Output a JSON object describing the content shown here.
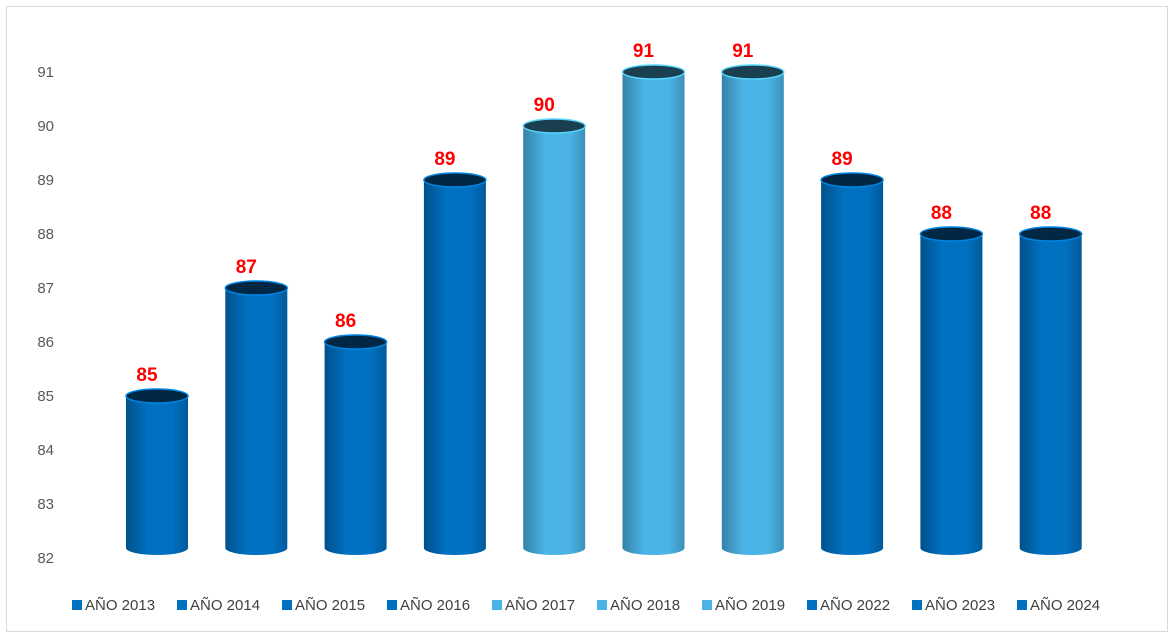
{
  "chart_data": {
    "type": "bar",
    "categories": [
      "AÑO 2013",
      "AÑO 2014",
      "AÑO 2015",
      "AÑO 2016",
      "AÑO 2017",
      "AÑO 2018",
      "AÑO 2019",
      "AÑO 2022",
      "AÑO 2023",
      "AÑO 2024"
    ],
    "values": [
      85,
      87,
      86,
      89,
      90,
      91,
      91,
      89,
      88,
      88
    ],
    "value_labels": [
      "85",
      "87",
      "86",
      "89",
      "90",
      "91",
      "91",
      "89",
      "88",
      "88"
    ],
    "colors": [
      "#0070c0",
      "#0070c0",
      "#0070c0",
      "#0070c0",
      "#4ab4e6",
      "#4ab4e6",
      "#4ab4e6",
      "#0070c0",
      "#0070c0",
      "#0070c0"
    ],
    "bar_shape": "cylinder",
    "y_ticks": [
      "82",
      "83",
      "84",
      "85",
      "86",
      "87",
      "88",
      "89",
      "90",
      "91"
    ],
    "ylim": [
      82,
      91.5
    ],
    "grid": false,
    "legend_position": "bottom",
    "data_label_color": "#ff0000",
    "title": "",
    "xlabel": "",
    "ylabel": ""
  }
}
